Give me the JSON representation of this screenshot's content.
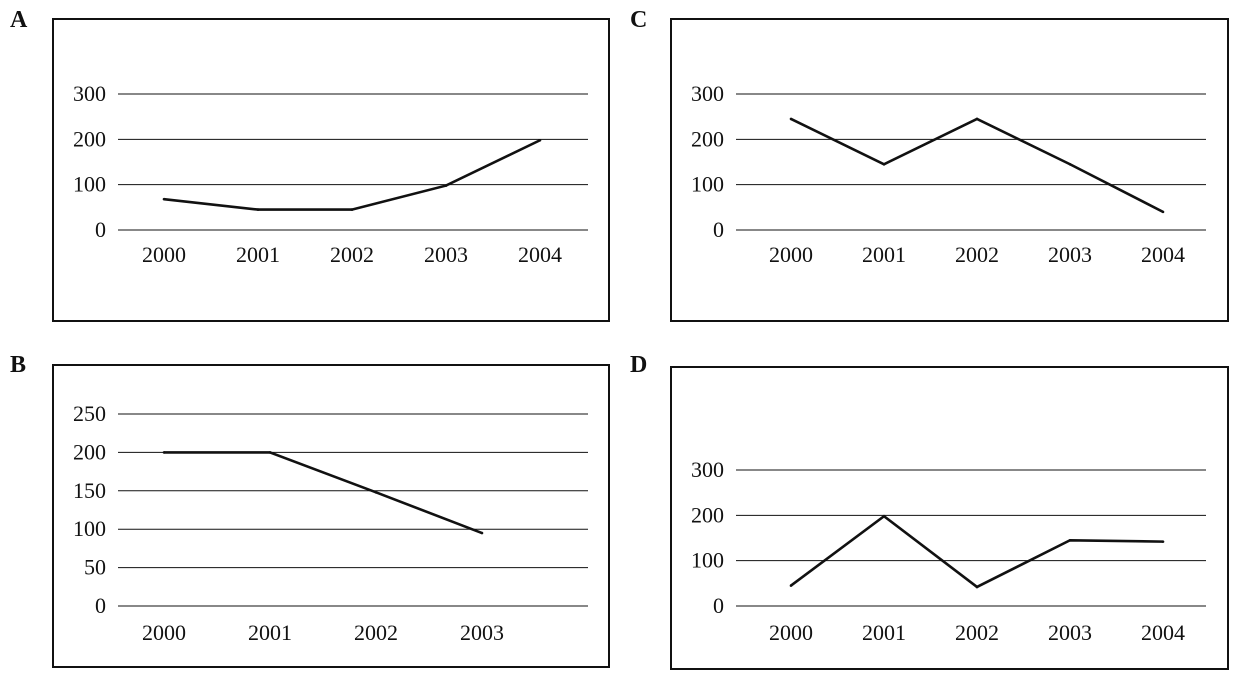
{
  "chart_data": [
    {
      "panel": "A",
      "type": "line",
      "categories": [
        "2000",
        "2001",
        "2002",
        "2003",
        "2004"
      ],
      "yticks": [
        "0",
        "100",
        "200",
        "300"
      ],
      "ylim": [
        0,
        300
      ],
      "grid": true,
      "series": [
        {
          "values": [
            68,
            45,
            45,
            98,
            198
          ]
        }
      ]
    },
    {
      "panel": "B",
      "type": "line",
      "categories": [
        "2000",
        "2001",
        "2002",
        "2003"
      ],
      "yticks": [
        "0",
        "50",
        "100",
        "150",
        "200",
        "250"
      ],
      "ylim": [
        0,
        250
      ],
      "grid": true,
      "series": [
        {
          "values": [
            200,
            200,
            148,
            95
          ]
        }
      ]
    },
    {
      "panel": "C",
      "type": "line",
      "categories": [
        "2000",
        "2001",
        "2002",
        "2003",
        "2004"
      ],
      "yticks": [
        "0",
        "100",
        "200",
        "300"
      ],
      "ylim": [
        0,
        300
      ],
      "grid": true,
      "series": [
        {
          "values": [
            245,
            145,
            245,
            145,
            40
          ]
        }
      ]
    },
    {
      "panel": "D",
      "type": "line",
      "categories": [
        "2000",
        "2001",
        "2002",
        "2003",
        "2004"
      ],
      "yticks": [
        "0",
        "100",
        "200",
        "300"
      ],
      "ylim": [
        0,
        300
      ],
      "grid": true,
      "series": [
        {
          "values": [
            45,
            198,
            42,
            145,
            142
          ]
        }
      ]
    }
  ]
}
